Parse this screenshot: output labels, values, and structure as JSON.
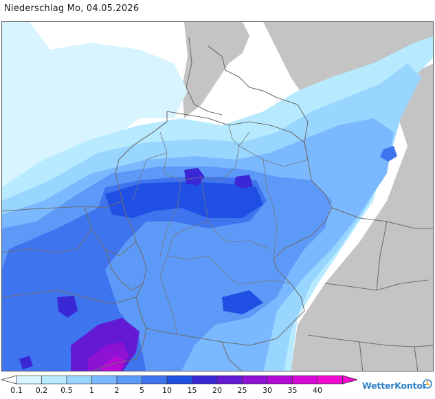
{
  "header": {
    "title": "Niederschlag Mo, 04.05.2026"
  },
  "map": {
    "region": "Germany and neighbouring countries",
    "colors": {
      "background": "#ffffff",
      "land_no_data": "#c4c4c4",
      "borders": "#6e6e6e"
    }
  },
  "legend": {
    "labels": [
      "0.1",
      "0.2",
      "0.5",
      "1",
      "2",
      "5",
      "10",
      "15",
      "20",
      "25",
      "30",
      "35",
      "40"
    ],
    "colors": [
      "#d8f5ff",
      "#b8eaff",
      "#98d6ff",
      "#7ab8ff",
      "#5d9af8",
      "#3f74ef",
      "#1f4fe3",
      "#3a27d6",
      "#6419d2",
      "#8d12d4",
      "#b40bd4",
      "#d809d6",
      "#f20ad2"
    ],
    "triangle_colors": {
      "low": "#ffffff",
      "high": "#f20ad2"
    }
  },
  "brand": {
    "text": "WetterKontor",
    "icon": "wetterkontor-logo-icon"
  }
}
